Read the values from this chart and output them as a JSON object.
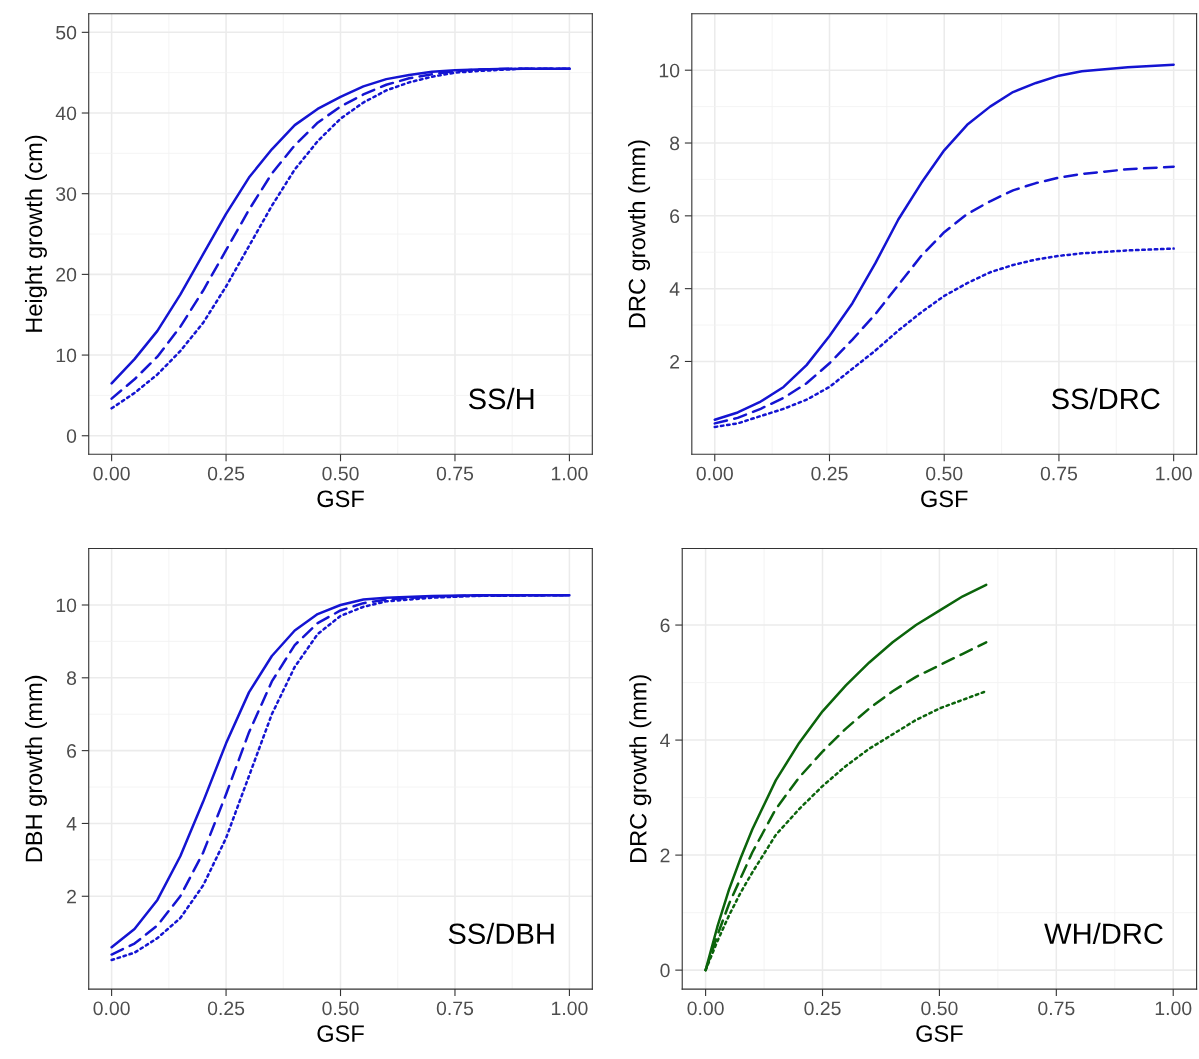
{
  "chart_data": [
    {
      "type": "line",
      "xlabel": "GSF",
      "ylabel": "Height growth (cm)",
      "annotations": [
        "SS/H"
      ],
      "xlim": [
        -0.05,
        1.05
      ],
      "ylim": [
        -2.3,
        52.3
      ],
      "xticks": [
        {
          "value": 0,
          "label": "0.00"
        },
        {
          "value": 0.25,
          "label": "0.25"
        },
        {
          "value": 0.5,
          "label": "0.50"
        },
        {
          "value": 0.75,
          "label": "0.75"
        },
        {
          "value": 1,
          "label": "1.00"
        }
      ],
      "yticks": [
        0,
        10,
        20,
        30,
        40,
        50
      ],
      "grid": true,
      "series": [
        {
          "color": "#1414d2",
          "line_style": "solid",
          "x": [
            0,
            0.05,
            0.1,
            0.15,
            0.2,
            0.25,
            0.3,
            0.35,
            0.4,
            0.45,
            0.5,
            0.55,
            0.6,
            0.65,
            0.7,
            0.75,
            0.8,
            0.9,
            1.0
          ],
          "values": [
            6.5,
            9.5,
            13,
            17.5,
            22.5,
            27.5,
            32,
            35.5,
            38.5,
            40.5,
            42,
            43.3,
            44.2,
            44.7,
            45.1,
            45.3,
            45.4,
            45.5,
            45.5
          ]
        },
        {
          "color": "#1414d2",
          "line_style": "dashed",
          "x": [
            0,
            0.05,
            0.1,
            0.15,
            0.2,
            0.25,
            0.3,
            0.35,
            0.4,
            0.45,
            0.5,
            0.55,
            0.6,
            0.65,
            0.7,
            0.75,
            0.8,
            0.9,
            1.0
          ],
          "values": [
            4.6,
            7,
            9.8,
            13.5,
            18,
            23,
            28,
            32.5,
            36,
            38.8,
            40.8,
            42.3,
            43.5,
            44.3,
            44.8,
            45.2,
            45.4,
            45.5,
            45.5
          ]
        },
        {
          "color": "#1414d2",
          "line_style": "dotted",
          "x": [
            0,
            0.05,
            0.1,
            0.15,
            0.2,
            0.25,
            0.3,
            0.35,
            0.4,
            0.45,
            0.5,
            0.55,
            0.6,
            0.65,
            0.7,
            0.75,
            0.8,
            0.9,
            1.0
          ],
          "values": [
            3.4,
            5.3,
            7.6,
            10.5,
            14,
            18.5,
            23.5,
            28.5,
            33,
            36.5,
            39.3,
            41.3,
            42.8,
            43.8,
            44.5,
            45,
            45.2,
            45.5,
            45.5
          ]
        }
      ]
    },
    {
      "type": "line",
      "xlabel": "GSF",
      "ylabel": "DRC growth (mm)",
      "annotations": [
        "SS/DRC"
      ],
      "xlim": [
        -0.05,
        1.05
      ],
      "ylim": [
        -0.55,
        11.55
      ],
      "xticks": [
        {
          "value": 0,
          "label": "0.00"
        },
        {
          "value": 0.25,
          "label": "0.25"
        },
        {
          "value": 0.5,
          "label": "0.50"
        },
        {
          "value": 0.75,
          "label": "0.75"
        },
        {
          "value": 1,
          "label": "1.00"
        }
      ],
      "yticks": [
        2,
        4,
        6,
        8,
        10
      ],
      "grid": true,
      "series": [
        {
          "color": "#1414d2",
          "line_style": "solid",
          "x": [
            0,
            0.05,
            0.1,
            0.15,
            0.2,
            0.25,
            0.3,
            0.35,
            0.4,
            0.45,
            0.5,
            0.55,
            0.6,
            0.65,
            0.7,
            0.75,
            0.8,
            0.9,
            1.0
          ],
          "values": [
            0.4,
            0.6,
            0.9,
            1.3,
            1.9,
            2.7,
            3.6,
            4.7,
            5.9,
            6.9,
            7.8,
            8.5,
            9.0,
            9.4,
            9.65,
            9.85,
            9.97,
            10.08,
            10.15
          ]
        },
        {
          "color": "#1414d2",
          "line_style": "dashed",
          "x": [
            0,
            0.05,
            0.1,
            0.15,
            0.2,
            0.25,
            0.3,
            0.35,
            0.4,
            0.45,
            0.5,
            0.55,
            0.6,
            0.65,
            0.7,
            0.75,
            0.8,
            0.9,
            1.0
          ],
          "values": [
            0.3,
            0.45,
            0.7,
            1.0,
            1.4,
            1.95,
            2.6,
            3.3,
            4.1,
            4.9,
            5.55,
            6.05,
            6.4,
            6.7,
            6.9,
            7.05,
            7.15,
            7.28,
            7.35
          ]
        },
        {
          "color": "#1414d2",
          "line_style": "dotted",
          "x": [
            0,
            0.05,
            0.1,
            0.15,
            0.2,
            0.25,
            0.3,
            0.35,
            0.4,
            0.45,
            0.5,
            0.55,
            0.6,
            0.65,
            0.7,
            0.75,
            0.8,
            0.9,
            1.0
          ],
          "values": [
            0.2,
            0.3,
            0.5,
            0.7,
            0.95,
            1.3,
            1.8,
            2.3,
            2.85,
            3.35,
            3.8,
            4.15,
            4.45,
            4.65,
            4.8,
            4.9,
            4.97,
            5.05,
            5.1
          ]
        }
      ]
    },
    {
      "type": "line",
      "xlabel": "GSF",
      "ylabel": "DBH growth (mm)",
      "annotations": [
        "SS/DBH"
      ],
      "xlim": [
        -0.05,
        1.05
      ],
      "ylim": [
        -0.55,
        11.55
      ],
      "xticks": [
        {
          "value": 0,
          "label": "0.00"
        },
        {
          "value": 0.25,
          "label": "0.25"
        },
        {
          "value": 0.5,
          "label": "0.50"
        },
        {
          "value": 0.75,
          "label": "0.75"
        },
        {
          "value": 1,
          "label": "1.00"
        }
      ],
      "yticks": [
        2,
        4,
        6,
        8,
        10
      ],
      "grid": true,
      "series": [
        {
          "color": "#1414d2",
          "line_style": "solid",
          "x": [
            0,
            0.05,
            0.1,
            0.15,
            0.2,
            0.25,
            0.3,
            0.35,
            0.4,
            0.45,
            0.5,
            0.55,
            0.6,
            0.7,
            0.8,
            1.0
          ],
          "values": [
            0.6,
            1.1,
            1.9,
            3.1,
            4.6,
            6.2,
            7.6,
            8.6,
            9.3,
            9.75,
            10.0,
            10.15,
            10.2,
            10.25,
            10.27,
            10.27
          ]
        },
        {
          "color": "#1414d2",
          "line_style": "dashed",
          "x": [
            0,
            0.05,
            0.1,
            0.15,
            0.2,
            0.25,
            0.3,
            0.35,
            0.4,
            0.45,
            0.5,
            0.55,
            0.6,
            0.7,
            0.8,
            1.0
          ],
          "values": [
            0.4,
            0.7,
            1.2,
            2.0,
            3.2,
            4.8,
            6.5,
            7.9,
            8.9,
            9.5,
            9.85,
            10.05,
            10.15,
            10.23,
            10.26,
            10.27
          ]
        },
        {
          "color": "#1414d2",
          "line_style": "dotted",
          "x": [
            0,
            0.05,
            0.1,
            0.15,
            0.2,
            0.25,
            0.3,
            0.35,
            0.4,
            0.45,
            0.5,
            0.55,
            0.6,
            0.7,
            0.8,
            1.0
          ],
          "values": [
            0.25,
            0.45,
            0.85,
            1.4,
            2.3,
            3.6,
            5.3,
            7.0,
            8.3,
            9.2,
            9.7,
            9.95,
            10.1,
            10.2,
            10.25,
            10.27
          ]
        }
      ]
    },
    {
      "type": "line",
      "xlabel": "GSF",
      "ylabel": "DRC growth (mm)",
      "annotations": [
        "WH/DRC"
      ],
      "xlim": [
        -0.05,
        1.05
      ],
      "ylim": [
        -0.33,
        7.33
      ],
      "xticks": [
        {
          "value": 0,
          "label": "0.00"
        },
        {
          "value": 0.25,
          "label": "0.25"
        },
        {
          "value": 0.5,
          "label": "0.50"
        },
        {
          "value": 0.75,
          "label": "0.75"
        },
        {
          "value": 1,
          "label": "1.00"
        }
      ],
      "yticks": [
        0,
        2,
        4,
        6
      ],
      "grid": true,
      "series": [
        {
          "color": "#0b640b",
          "line_style": "solid",
          "x": [
            0,
            0.025,
            0.05,
            0.075,
            0.1,
            0.15,
            0.2,
            0.25,
            0.3,
            0.35,
            0.4,
            0.45,
            0.5,
            0.55,
            0.6
          ],
          "values": [
            0,
            0.75,
            1.4,
            1.95,
            2.45,
            3.3,
            3.95,
            4.5,
            4.95,
            5.35,
            5.7,
            6.0,
            6.25,
            6.5,
            6.7
          ]
        },
        {
          "color": "#0b640b",
          "line_style": "dashed",
          "x": [
            0,
            0.025,
            0.05,
            0.075,
            0.1,
            0.15,
            0.2,
            0.25,
            0.3,
            0.35,
            0.4,
            0.45,
            0.5,
            0.55,
            0.6
          ],
          "values": [
            0,
            0.6,
            1.15,
            1.6,
            2.05,
            2.8,
            3.35,
            3.8,
            4.2,
            4.55,
            4.85,
            5.1,
            5.3,
            5.5,
            5.7
          ]
        },
        {
          "color": "#0b640b",
          "line_style": "dotted",
          "x": [
            0,
            0.025,
            0.05,
            0.075,
            0.1,
            0.15,
            0.2,
            0.25,
            0.3,
            0.35,
            0.4,
            0.45,
            0.5,
            0.55,
            0.6
          ],
          "values": [
            0,
            0.5,
            0.95,
            1.35,
            1.7,
            2.35,
            2.8,
            3.2,
            3.55,
            3.85,
            4.1,
            4.35,
            4.55,
            4.7,
            4.85
          ]
        }
      ]
    }
  ]
}
